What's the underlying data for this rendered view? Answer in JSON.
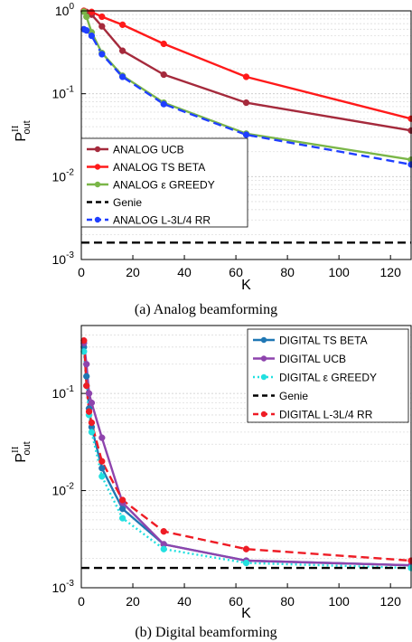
{
  "chart_data": [
    {
      "type": "line",
      "caption": "(a) Analog beamforming",
      "xlabel": "K",
      "ylabel_main": "P",
      "ylabel_sup": "II",
      "ylabel_sub": "out",
      "xlim": [
        0,
        128
      ],
      "ylim": [
        0.001,
        1
      ],
      "yscale": "log",
      "xticks": [
        "0",
        "20",
        "40",
        "60",
        "80",
        "100",
        "120"
      ],
      "yticks": [
        {
          "base": "10",
          "exp": "-3"
        },
        {
          "base": "10",
          "exp": "-2"
        },
        {
          "base": "10",
          "exp": "-1"
        },
        {
          "base": "10",
          "exp": "0"
        }
      ],
      "grid": true,
      "legend_position": "bottom-left",
      "series": [
        {
          "name": "ANALOG UCB",
          "color": "#a52a3c",
          "dash": "solid",
          "marker": true,
          "x": [
            1,
            2,
            4,
            8,
            16,
            32,
            64,
            128
          ],
          "y": [
            1.0,
            0.97,
            0.9,
            0.65,
            0.33,
            0.17,
            0.078,
            0.036
          ]
        },
        {
          "name": "ANALOG TS BETA",
          "color": "#ff1a1a",
          "dash": "solid",
          "marker": true,
          "x": [
            1,
            4,
            8,
            16,
            32,
            64,
            128
          ],
          "y": [
            1.0,
            0.97,
            0.85,
            0.68,
            0.4,
            0.16,
            0.05
          ]
        },
        {
          "name": "ANALOG ε GREEDY",
          "color": "#7ab648",
          "dash": "solid",
          "marker": true,
          "x": [
            1,
            2,
            4,
            8,
            16,
            32,
            64,
            128
          ],
          "y": [
            0.98,
            0.85,
            0.55,
            0.31,
            0.165,
            0.078,
            0.033,
            0.016
          ]
        },
        {
          "name": "Genie",
          "color": "#000000",
          "dash": "dashed",
          "marker": false,
          "x": [
            0,
            128
          ],
          "y": [
            0.0016,
            0.0016
          ]
        },
        {
          "name": "ANALOG L-3L/4 RR",
          "color": "#1f3fff",
          "dash": "dashed",
          "marker": true,
          "x": [
            1,
            2,
            4,
            8,
            16,
            32,
            64,
            128
          ],
          "y": [
            0.6,
            0.58,
            0.5,
            0.3,
            0.16,
            0.075,
            0.032,
            0.014
          ]
        }
      ]
    },
    {
      "type": "line",
      "caption": "(b) Digital beamforming",
      "xlabel": "K",
      "ylabel_main": "P",
      "ylabel_sup": "II",
      "ylabel_sub": "out",
      "xlim": [
        0,
        128
      ],
      "ylim": [
        0.001,
        0.5
      ],
      "yscale": "log",
      "xticks": [
        "0",
        "20",
        "40",
        "60",
        "80",
        "100",
        "120"
      ],
      "yticks": [
        {
          "base": "10",
          "exp": "-3"
        },
        {
          "base": "10",
          "exp": "-2"
        },
        {
          "base": "10",
          "exp": "-1"
        }
      ],
      "grid": true,
      "legend_position": "top-right",
      "series": [
        {
          "name": "DIGITAL TS BETA",
          "color": "#1f77b4",
          "dash": "solid",
          "marker": true,
          "x": [
            1,
            2,
            3,
            4,
            8,
            16,
            32,
            64,
            128
          ],
          "y": [
            0.3,
            0.15,
            0.07,
            0.045,
            0.017,
            0.0065,
            0.0028,
            0.0019,
            0.0017
          ]
        },
        {
          "name": "DIGITAL UCB",
          "color": "#8e44ad",
          "dash": "solid",
          "marker": true,
          "x": [
            1,
            2,
            3,
            4,
            8,
            16,
            32,
            64,
            128
          ],
          "y": [
            0.33,
            0.2,
            0.1,
            0.08,
            0.035,
            0.0075,
            0.0028,
            0.0019,
            0.0017
          ]
        },
        {
          "name": "DIGITAL ε GREEDY",
          "color": "#22e0e0",
          "dash": "dotted",
          "marker": true,
          "x": [
            1,
            2,
            3,
            4,
            8,
            16,
            32,
            64,
            128
          ],
          "y": [
            0.27,
            0.12,
            0.06,
            0.04,
            0.014,
            0.0052,
            0.0025,
            0.0018,
            0.0016
          ]
        },
        {
          "name": "Genie",
          "color": "#000000",
          "dash": "dashed",
          "marker": false,
          "x": [
            0,
            128
          ],
          "y": [
            0.0016,
            0.0016
          ]
        },
        {
          "name": "DIGITAL L-3L/4 RR",
          "color": "#ee1c25",
          "dash": "dashed",
          "marker": true,
          "x": [
            1,
            2,
            3,
            4,
            8,
            16,
            32,
            64,
            128
          ],
          "y": [
            0.35,
            0.12,
            0.065,
            0.05,
            0.02,
            0.008,
            0.0038,
            0.0025,
            0.0019
          ]
        }
      ]
    }
  ]
}
